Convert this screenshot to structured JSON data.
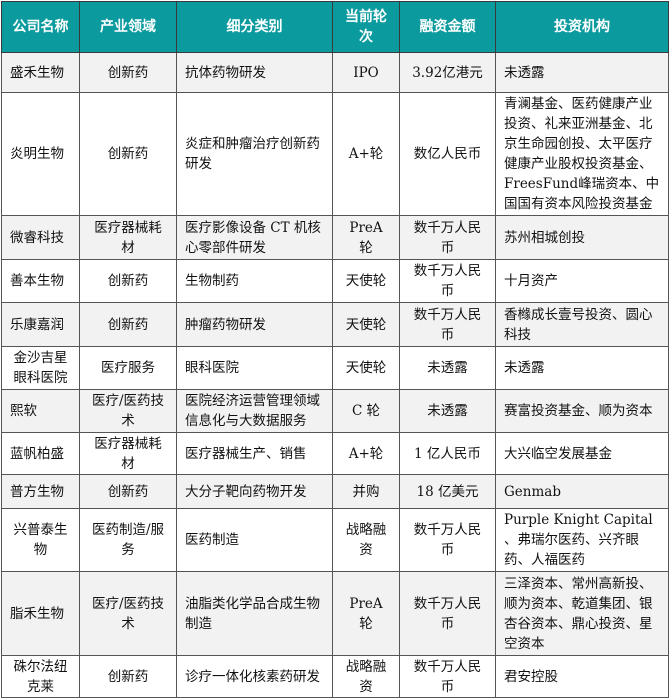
{
  "table": {
    "header_color": "#0b9a9e",
    "columns": [
      "公司名称",
      "产业领域",
      "细分类别",
      "当前轮次",
      "融资金额",
      "投资机构"
    ],
    "rows": [
      [
        "盛禾生物",
        "创新药",
        "抗体药物研发",
        "IPO",
        "3.92亿港元",
        "未透露"
      ],
      [
        "炎明生物",
        "创新药",
        "炎症和肿瘤治疗创新药研发",
        "A+轮",
        "数亿人民币",
        "青澜基金、医药健康产业投资、礼来亚洲基金、北京生命园创投、太平医疗健康产业股权投资基金、FreesFund峰瑞资本、中国国有资本风险投资基金"
      ],
      [
        "微睿科技",
        "医疗器械耗材",
        "医疗影像设备 CT 机核心零部件研发",
        "PreA 轮",
        "数千万人民币",
        "苏州相城创投"
      ],
      [
        "善本生物",
        "创新药",
        "生物制药",
        "天使轮",
        "数千万人民币",
        "十月资产"
      ],
      [
        "乐康嘉润",
        "创新药",
        "肿瘤药物研发",
        "天使轮",
        "数千万人民币",
        "香橼成长壹号投资、圆心科技"
      ],
      [
        "金沙吉星眼科医院",
        "医疗服务",
        "眼科医院",
        "天使轮",
        "未透露",
        "未透露"
      ],
      [
        "熙软",
        "医疗/医药技术",
        "医院经济运营管理领域信息化与大数据服务",
        "C 轮",
        "未透露",
        "赛富投资基金、顺为资本"
      ],
      [
        "蓝帆柏盛",
        "医疗器械耗材",
        "医疗器械生产、销售",
        "A+轮",
        "1 亿人民币",
        "大兴临空发展基金"
      ],
      [
        "普方生物",
        "创新药",
        "大分子靶向药物开发",
        "并购",
        "18 亿美元",
        "Genmab"
      ],
      [
        "兴普泰生物",
        "医药制造/服务",
        "医药制造",
        "战略融资",
        "数千万人民币",
        "Purple Knight Capital 、弗瑞尔医药、兴齐眼药、人福医药"
      ],
      [
        "脂禾生物",
        "医疗/医药技术",
        "油脂类化学品合成生物制造",
        "PreA 轮",
        "数千万人民币",
        "三泽资本、常州高新投、顺为资本、乾道集团、银杏谷资本、鼎心投资、星空资本"
      ],
      [
        "硃尔法纽克莱",
        "创新药",
        "诊疗一体化核素药研发",
        "战略融资",
        "数千万人民币",
        "君安控股"
      ]
    ]
  }
}
